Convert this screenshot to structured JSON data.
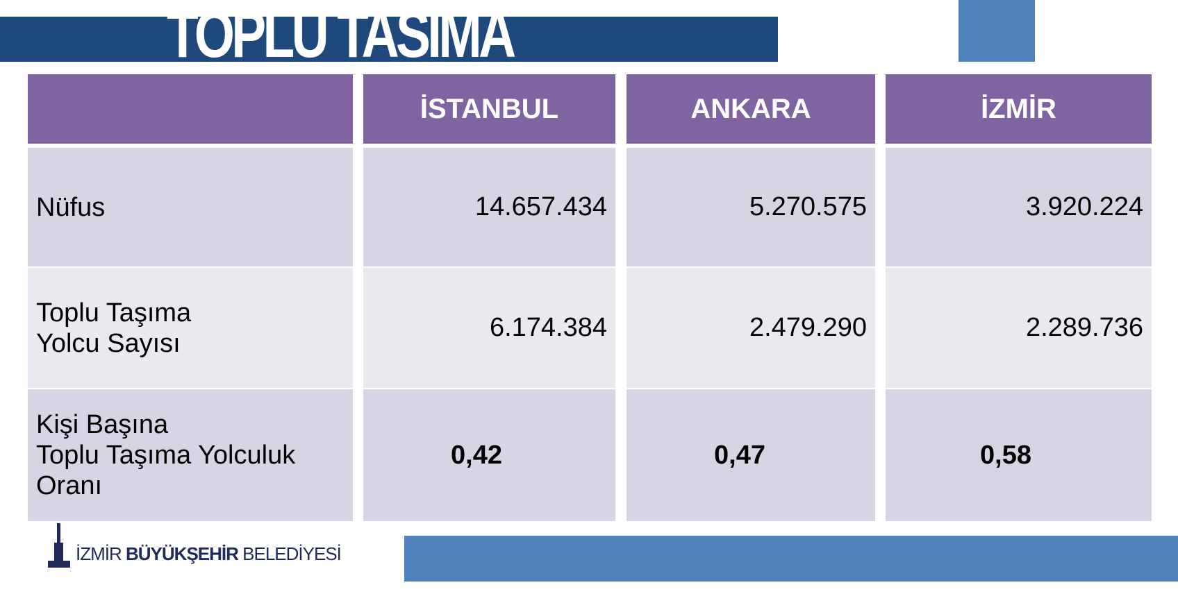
{
  "title": "TOPLU TASIMA",
  "table": {
    "headers": [
      "",
      "İSTANBUL",
      "ANKARA",
      "İZMİR"
    ],
    "rows": [
      {
        "label": [
          "Nüfus"
        ],
        "values": [
          "14.657.434",
          "5.270.575",
          "3.920.224"
        ]
      },
      {
        "label": [
          "Toplu Taşıma",
          "Yolcu Sayısı"
        ],
        "values": [
          "6.174.384",
          "2.479.290",
          "2.289.736"
        ]
      },
      {
        "label": [
          "Kişi Başına",
          "Toplu Taşıma Yolculuk",
          "Oranı"
        ],
        "values": [
          "0,42",
          "0,47",
          "0,58"
        ]
      }
    ]
  },
  "logo": {
    "part1": "İZMİR ",
    "part2": "BÜYÜKŞEHİR",
    "part3": " BELEDİYESİ"
  },
  "colors": {
    "title_bar": "#1f497d",
    "accent": "#4f81bd",
    "header": "#8064a2"
  }
}
